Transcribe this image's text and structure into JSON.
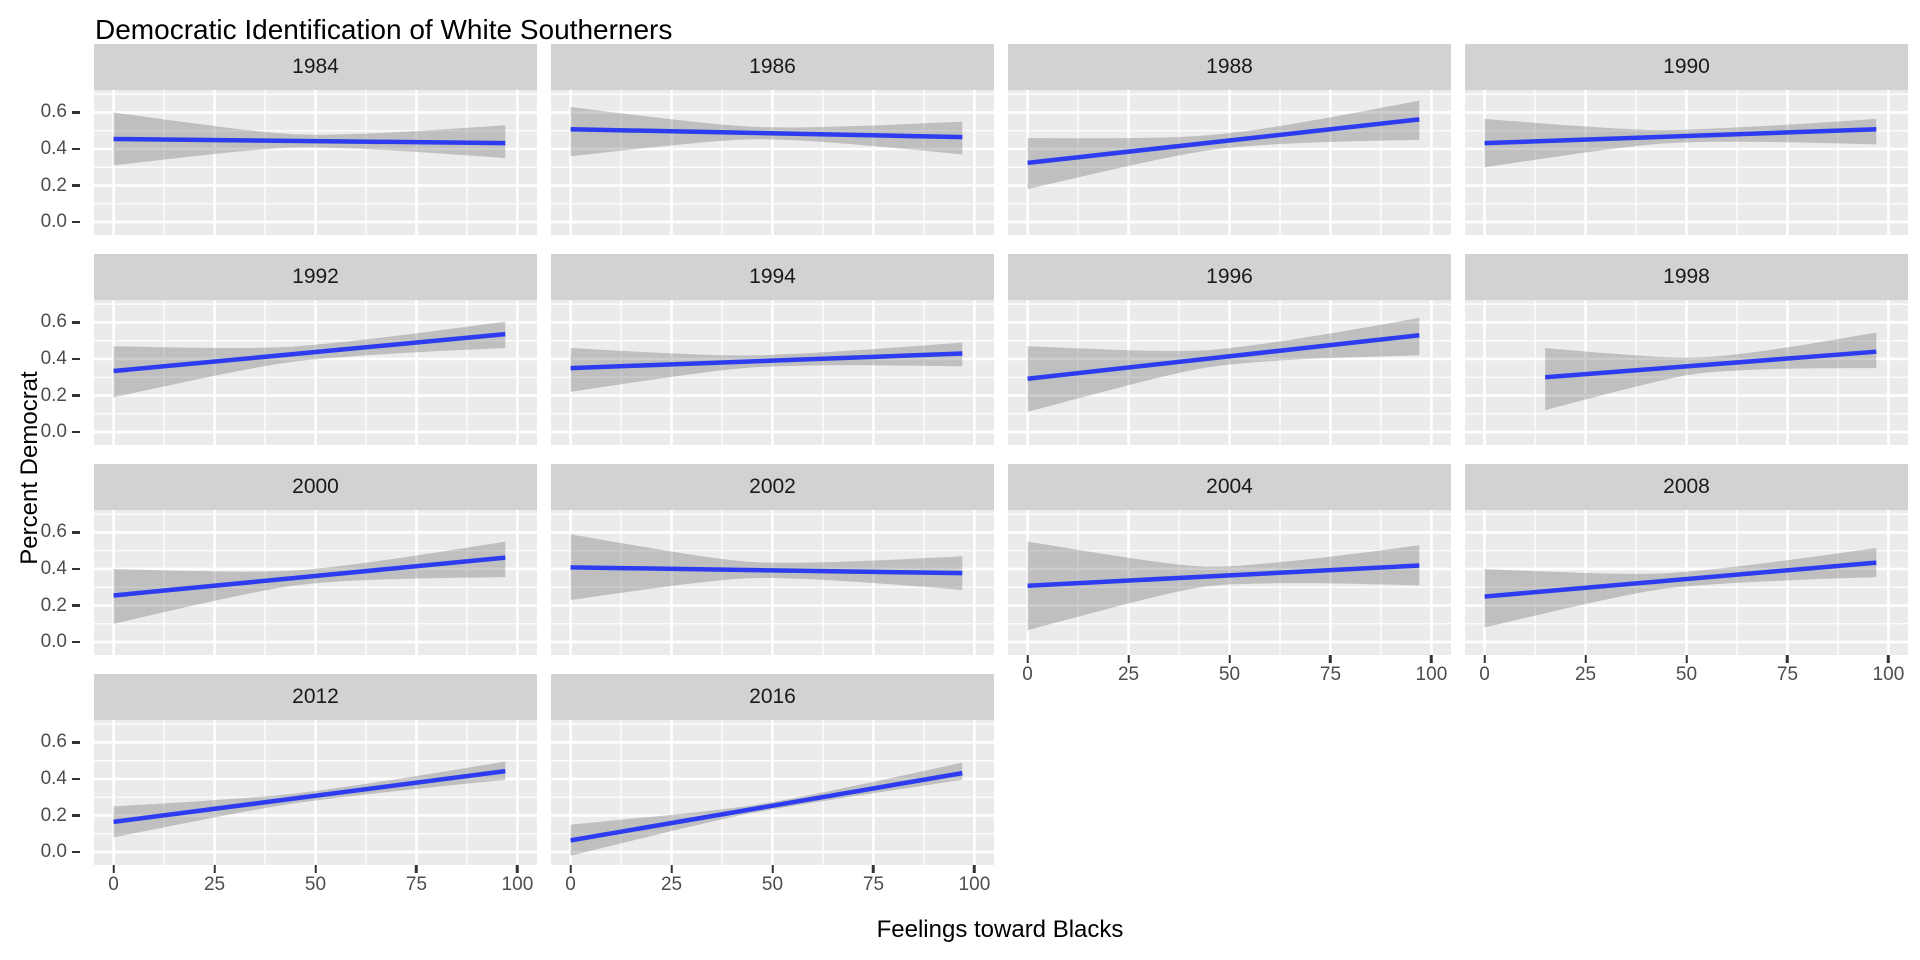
{
  "title": "Democratic Identification of White Southerners",
  "axes": {
    "x_title": "Feelings toward Blacks",
    "y_title": "Percent Democrat",
    "x_ticks": [
      0,
      25,
      50,
      75,
      100
    ],
    "y_ticks": [
      "0.6",
      "0.4",
      "0.2",
      "0.0"
    ],
    "y_tick_values": [
      0.6,
      0.4,
      0.2,
      0.0
    ],
    "x_minor_ticks": [
      12.5,
      37.5,
      62.5,
      87.5
    ],
    "y_minor_ticks": [
      0.1,
      0.3,
      0.5,
      0.7
    ]
  },
  "style": {
    "panel_bg": "#ebebeb",
    "strip_bg": "#d2d2d2",
    "grid_color": "#ffffff",
    "band_color": "rgba(90,90,90,0.30)",
    "line_color": "#2d3cf0",
    "tick_text_color": "#4d4d4d",
    "strip_text_color": "#1a1a1a"
  },
  "chart_data": {
    "type": "line",
    "title": "Democratic Identification of White Southerners",
    "xlabel": "Feelings toward Blacks",
    "ylabel": "Percent Democrat",
    "x_range": [
      0,
      100
    ],
    "x_domain": [
      -4.85,
      104.85
    ],
    "y_domain": [
      -0.071,
      0.723
    ],
    "grid": true,
    "legend": "none",
    "description": "Faceted linear-fit (geom_smooth) lines with gray confidence ribbons, one facet per survey year; x = feelings toward Blacks (0-100), y = proportion identifying as Democrat.",
    "facets": [
      {
        "year": "1984",
        "show_x_axis": false,
        "show_y_axis": true,
        "x": [
          0,
          97
        ],
        "line_y": [
          0.455,
          0.432
        ],
        "ci_lower": [
          0.31,
          0.35
        ],
        "ci_upper": [
          0.6,
          0.53
        ],
        "ci_mid_half": 0.035
      },
      {
        "year": "1986",
        "show_x_axis": false,
        "show_y_axis": false,
        "x": [
          0,
          97
        ],
        "line_y": [
          0.508,
          0.465
        ],
        "ci_lower": [
          0.36,
          0.37
        ],
        "ci_upper": [
          0.63,
          0.55
        ],
        "ci_mid_half": 0.033
      },
      {
        "year": "1988",
        "show_x_axis": false,
        "show_y_axis": false,
        "x": [
          0,
          97
        ],
        "line_y": [
          0.324,
          0.562
        ],
        "ci_lower": [
          0.18,
          0.45
        ],
        "ci_upper": [
          0.46,
          0.665
        ],
        "ci_mid_half": 0.04
      },
      {
        "year": "1990",
        "show_x_axis": false,
        "show_y_axis": false,
        "x": [
          0,
          97
        ],
        "line_y": [
          0.432,
          0.508
        ],
        "ci_lower": [
          0.3,
          0.425
        ],
        "ci_upper": [
          0.565,
          0.565
        ],
        "ci_mid_half": 0.035
      },
      {
        "year": "1992",
        "show_x_axis": false,
        "show_y_axis": true,
        "x": [
          0,
          97
        ],
        "line_y": [
          0.334,
          0.536
        ],
        "ci_lower": [
          0.19,
          0.46
        ],
        "ci_upper": [
          0.47,
          0.605
        ],
        "ci_mid_half": 0.04
      },
      {
        "year": "1994",
        "show_x_axis": false,
        "show_y_axis": false,
        "x": [
          0,
          97
        ],
        "line_y": [
          0.35,
          0.43
        ],
        "ci_lower": [
          0.22,
          0.36
        ],
        "ci_upper": [
          0.46,
          0.49
        ],
        "ci_mid_half": 0.032
      },
      {
        "year": "1996",
        "show_x_axis": false,
        "show_y_axis": false,
        "x": [
          0,
          97
        ],
        "line_y": [
          0.292,
          0.53
        ],
        "ci_lower": [
          0.11,
          0.42
        ],
        "ci_upper": [
          0.47,
          0.625
        ],
        "ci_mid_half": 0.045
      },
      {
        "year": "1998",
        "show_x_axis": false,
        "show_y_axis": false,
        "x": [
          15,
          97
        ],
        "line_y": [
          0.3,
          0.44
        ],
        "ci_lower": [
          0.12,
          0.35
        ],
        "ci_upper": [
          0.46,
          0.545
        ],
        "ci_mid_half": 0.042
      },
      {
        "year": "2000",
        "show_x_axis": false,
        "show_y_axis": true,
        "x": [
          0,
          97
        ],
        "line_y": [
          0.255,
          0.462
        ],
        "ci_lower": [
          0.1,
          0.355
        ],
        "ci_upper": [
          0.4,
          0.55
        ],
        "ci_mid_half": 0.04
      },
      {
        "year": "2002",
        "show_x_axis": false,
        "show_y_axis": false,
        "x": [
          0,
          97
        ],
        "line_y": [
          0.409,
          0.377
        ],
        "ci_lower": [
          0.23,
          0.285
        ],
        "ci_upper": [
          0.59,
          0.47
        ],
        "ci_mid_half": 0.042
      },
      {
        "year": "2004",
        "show_x_axis": true,
        "show_y_axis": false,
        "x": [
          0,
          97
        ],
        "line_y": [
          0.308,
          0.419
        ],
        "ci_lower": [
          0.065,
          0.31
        ],
        "ci_upper": [
          0.55,
          0.53
        ],
        "ci_mid_half": 0.05
      },
      {
        "year": "2008",
        "show_x_axis": true,
        "show_y_axis": false,
        "x": [
          0,
          97
        ],
        "line_y": [
          0.249,
          0.435
        ],
        "ci_lower": [
          0.08,
          0.355
        ],
        "ci_upper": [
          0.4,
          0.515
        ],
        "ci_mid_half": 0.04
      },
      {
        "year": "2012",
        "show_x_axis": true,
        "show_y_axis": true,
        "x": [
          0,
          97
        ],
        "line_y": [
          0.165,
          0.443
        ],
        "ci_lower": [
          0.08,
          0.395
        ],
        "ci_upper": [
          0.25,
          0.496
        ],
        "ci_mid_half": 0.026
      },
      {
        "year": "2016",
        "show_x_axis": true,
        "show_y_axis": false,
        "x": [
          0,
          97
        ],
        "line_y": [
          0.064,
          0.432
        ],
        "ci_lower": [
          -0.02,
          0.395
        ],
        "ci_upper": [
          0.15,
          0.49
        ],
        "ci_mid_half": 0.02
      }
    ]
  }
}
